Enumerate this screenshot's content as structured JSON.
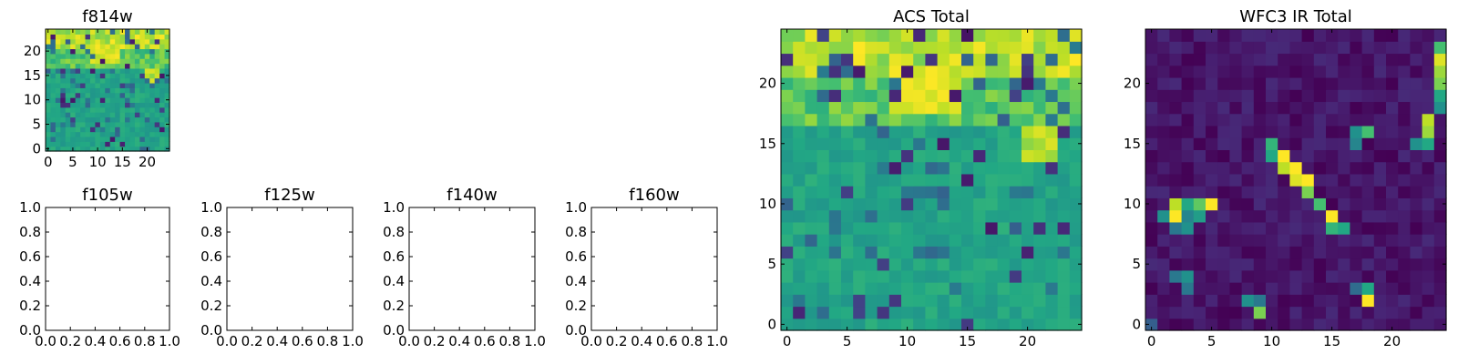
{
  "chart_data": [
    {
      "type": "heatmap",
      "title": "f814w",
      "xlim": [
        -0.5,
        24.5
      ],
      "ylim": [
        -0.5,
        24.5
      ],
      "xticks": [
        0,
        5,
        10,
        15,
        20
      ],
      "yticks": [
        0,
        5,
        10,
        15,
        20
      ],
      "xticklabels": [
        "0",
        "5",
        "10",
        "15",
        "20"
      ],
      "yticklabels": [
        "0",
        "5",
        "10",
        "15",
        "20"
      ],
      "colormap": "viridis",
      "pattern": "acs"
    },
    {
      "type": "heatmap",
      "title": "ACS Total",
      "xlim": [
        -0.5,
        24.5
      ],
      "ylim": [
        -0.5,
        24.5
      ],
      "xticks": [
        0,
        5,
        10,
        15,
        20
      ],
      "yticks": [
        0,
        5,
        10,
        15,
        20
      ],
      "xticklabels": [
        "0",
        "5",
        "10",
        "15",
        "20"
      ],
      "yticklabels": [
        "0",
        "5",
        "10",
        "15",
        "20"
      ],
      "colormap": "viridis",
      "pattern": "acs"
    },
    {
      "type": "heatmap",
      "title": "WFC3 IR Total",
      "xlim": [
        -0.5,
        24.5
      ],
      "ylim": [
        -0.5,
        24.5
      ],
      "xticks": [
        0,
        5,
        10,
        15,
        20
      ],
      "yticks": [
        0,
        5,
        10,
        15,
        20
      ],
      "xticklabels": [
        "0",
        "5",
        "10",
        "15",
        "20"
      ],
      "yticklabels": [
        "0",
        "5",
        "10",
        "15",
        "20"
      ],
      "colormap": "viridis",
      "pattern": "ir",
      "bright_pixels": [
        [
          2,
          9,
          1.0
        ],
        [
          2,
          10,
          0.9
        ],
        [
          1,
          9,
          0.5
        ],
        [
          3,
          10,
          0.6
        ],
        [
          3,
          9,
          0.45
        ],
        [
          4,
          10,
          0.75
        ],
        [
          5,
          10,
          1.0
        ],
        [
          4,
          9,
          0.55
        ],
        [
          2,
          8,
          0.4
        ],
        [
          3,
          8,
          0.5
        ],
        [
          10,
          15,
          0.65
        ],
        [
          10,
          14,
          0.6
        ],
        [
          11,
          14,
          1.0
        ],
        [
          11,
          13,
          0.9
        ],
        [
          12,
          13,
          1.0
        ],
        [
          12,
          12,
          0.95
        ],
        [
          13,
          12,
          1.0
        ],
        [
          13,
          11,
          0.8
        ],
        [
          14,
          10,
          0.7
        ],
        [
          15,
          9,
          1.0
        ],
        [
          15,
          8,
          0.65
        ],
        [
          16,
          8,
          0.6
        ],
        [
          17,
          16,
          0.5
        ],
        [
          18,
          16,
          0.7
        ],
        [
          17,
          15,
          0.45
        ],
        [
          24,
          19,
          0.6
        ],
        [
          24,
          18,
          0.5
        ],
        [
          23,
          17,
          0.9
        ],
        [
          23,
          16,
          0.85
        ],
        [
          22,
          15,
          0.5
        ],
        [
          23,
          15,
          0.6
        ],
        [
          24,
          20,
          0.8
        ],
        [
          24,
          21,
          0.85
        ],
        [
          24,
          22,
          0.95
        ],
        [
          24,
          23,
          0.7
        ],
        [
          18,
          2,
          1.0
        ],
        [
          18,
          3,
          0.6
        ],
        [
          17,
          3,
          0.35
        ],
        [
          9,
          1,
          0.8
        ],
        [
          8,
          2,
          0.5
        ],
        [
          9,
          2,
          0.4
        ],
        [
          3,
          4,
          0.5
        ],
        [
          2,
          4,
          0.4
        ],
        [
          3,
          3,
          0.4
        ],
        [
          0,
          0,
          0.3
        ]
      ]
    },
    {
      "type": "empty",
      "title": "f105w",
      "xlim": [
        0,
        1
      ],
      "ylim": [
        0,
        1
      ],
      "xticks": [
        0,
        0.2,
        0.4,
        0.6,
        0.8,
        1.0
      ],
      "yticks": [
        0,
        0.2,
        0.4,
        0.6,
        0.8,
        1.0
      ],
      "xticklabels": [
        "0.0",
        "0.2",
        "0.4",
        "0.6",
        "0.8",
        "1.0"
      ],
      "yticklabels": [
        "0.0",
        "0.2",
        "0.4",
        "0.6",
        "0.8",
        "1.0"
      ]
    },
    {
      "type": "empty",
      "title": "f125w",
      "xlim": [
        0,
        1
      ],
      "ylim": [
        0,
        1
      ],
      "xticks": [
        0,
        0.2,
        0.4,
        0.6,
        0.8,
        1.0
      ],
      "yticks": [
        0,
        0.2,
        0.4,
        0.6,
        0.8,
        1.0
      ],
      "xticklabels": [
        "0.0",
        "0.2",
        "0.4",
        "0.6",
        "0.8",
        "1.0"
      ],
      "yticklabels": [
        "0.0",
        "0.2",
        "0.4",
        "0.6",
        "0.8",
        "1.0"
      ]
    },
    {
      "type": "empty",
      "title": "f140w",
      "xlim": [
        0,
        1
      ],
      "ylim": [
        0,
        1
      ],
      "xticks": [
        0,
        0.2,
        0.4,
        0.6,
        0.8,
        1.0
      ],
      "yticks": [
        0,
        0.2,
        0.4,
        0.6,
        0.8,
        1.0
      ],
      "xticklabels": [
        "0.0",
        "0.2",
        "0.4",
        "0.6",
        "0.8",
        "1.0"
      ],
      "yticklabels": [
        "0.0",
        "0.2",
        "0.4",
        "0.6",
        "0.8",
        "1.0"
      ]
    },
    {
      "type": "empty",
      "title": "f160w",
      "xlim": [
        0,
        1
      ],
      "ylim": [
        0,
        1
      ],
      "xticks": [
        0,
        0.2,
        0.4,
        0.6,
        0.8,
        1.0
      ],
      "yticks": [
        0,
        0.2,
        0.4,
        0.6,
        0.8,
        1.0
      ],
      "xticklabels": [
        "0.0",
        "0.2",
        "0.4",
        "0.6",
        "0.8",
        "1.0"
      ],
      "yticklabels": [
        "0.0",
        "0.2",
        "0.4",
        "0.6",
        "0.8",
        "1.0"
      ]
    }
  ]
}
